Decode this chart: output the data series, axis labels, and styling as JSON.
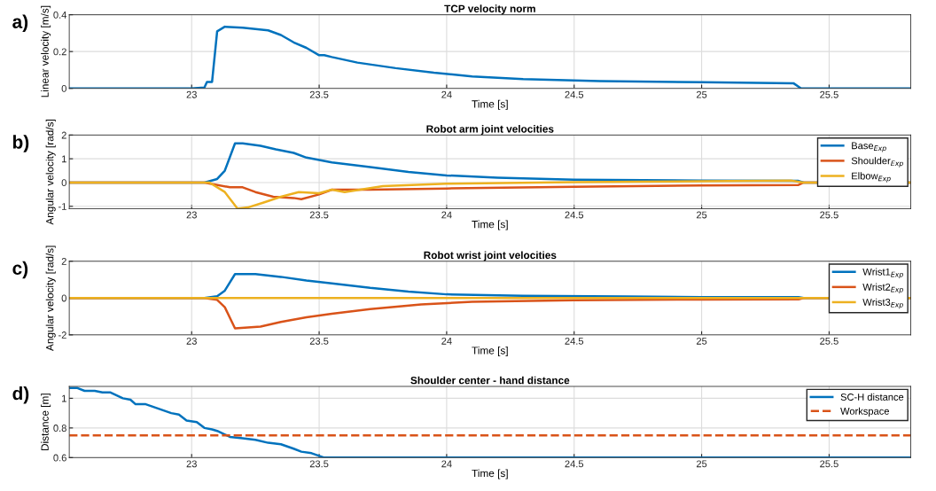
{
  "chart_data": [
    {
      "type": "line",
      "title": "TCP velocity norm",
      "xlabel": "Time [s]",
      "ylabel": "Linear velocity [m/s]",
      "annotations": [
        "a)"
      ],
      "xlim": [
        22.52,
        25.82
      ],
      "xticks": [
        23,
        23.5,
        24,
        24.5,
        25,
        25.5
      ],
      "ylim": [
        0,
        0.4
      ],
      "yticks": [
        0,
        0.2,
        0.4
      ],
      "grid": true,
      "legend": false,
      "line_style": "solid",
      "marker": "none",
      "series": [
        {
          "color": "#0072bd",
          "x": [
            22.52,
            23.0,
            23.05,
            23.06,
            23.08,
            23.1,
            23.13,
            23.2,
            23.3,
            23.35,
            23.4,
            23.45,
            23.5,
            23.52,
            23.55,
            23.65,
            23.8,
            23.95,
            24.1,
            24.3,
            24.6,
            25.0,
            25.36,
            25.39,
            25.82
          ],
          "values": [
            0,
            0,
            0.005,
            0.035,
            0.035,
            0.31,
            0.335,
            0.33,
            0.315,
            0.29,
            0.25,
            0.22,
            0.18,
            0.18,
            0.17,
            0.14,
            0.11,
            0.085,
            0.065,
            0.05,
            0.04,
            0.033,
            0.028,
            0,
            0
          ]
        }
      ]
    },
    {
      "type": "line",
      "title": "Robot arm joint velocities",
      "xlabel": "Time [s]",
      "ylabel": "Angular velocity [rad/s]",
      "annotations": [
        "b)"
      ],
      "xlim": [
        22.52,
        25.82
      ],
      "xticks": [
        23,
        23.5,
        24,
        24.5,
        25,
        25.5
      ],
      "ylim": [
        -1.1,
        2
      ],
      "yticks": [
        -1,
        0,
        1,
        2
      ],
      "grid": true,
      "legend": "top right",
      "line_style": "solid",
      "marker": "none",
      "series": [
        {
          "name": "Base$_{Exp}$",
          "color": "#0072bd",
          "x": [
            22.52,
            23.05,
            23.1,
            23.13,
            23.17,
            23.2,
            23.27,
            23.33,
            23.4,
            23.45,
            23.55,
            23.7,
            23.85,
            24.0,
            24.2,
            24.5,
            25.0,
            25.38,
            25.4,
            25.82
          ],
          "values": [
            0,
            0,
            0.15,
            0.5,
            1.65,
            1.65,
            1.55,
            1.4,
            1.25,
            1.05,
            0.85,
            0.65,
            0.45,
            0.3,
            0.2,
            0.12,
            0.08,
            0.07,
            0,
            0
          ]
        },
        {
          "name": "Shoulder$_{Exp}$",
          "color": "#d95319",
          "x": [
            22.52,
            23.05,
            23.15,
            23.2,
            23.25,
            23.32,
            23.4,
            23.43,
            23.5,
            23.55,
            23.7,
            24.0,
            24.5,
            25.0,
            25.38,
            25.4,
            25.82
          ],
          "values": [
            0,
            0,
            -0.2,
            -0.2,
            -0.4,
            -0.6,
            -0.65,
            -0.7,
            -0.5,
            -0.3,
            -0.3,
            -0.25,
            -0.18,
            -0.12,
            -0.1,
            0,
            0
          ]
        },
        {
          "name": "Elbow$_{Exp}$",
          "color": "#edb120",
          "x": [
            22.52,
            23.07,
            23.13,
            23.18,
            23.22,
            23.28,
            23.35,
            23.42,
            23.5,
            23.55,
            23.6,
            23.75,
            24.0,
            24.5,
            25.0,
            25.35,
            25.4,
            25.82
          ],
          "values": [
            0,
            0,
            -0.4,
            -1.1,
            -1.05,
            -0.85,
            -0.6,
            -0.4,
            -0.45,
            -0.3,
            -0.4,
            -0.15,
            -0.05,
            0.02,
            0.05,
            0.08,
            0,
            0
          ]
        }
      ]
    },
    {
      "type": "line",
      "title": "Robot wrist joint velocities",
      "xlabel": "Time [s]",
      "ylabel": "Angular velocity [rad/s]",
      "annotations": [
        "c)"
      ],
      "xlim": [
        22.52,
        25.82
      ],
      "xticks": [
        23,
        23.5,
        24,
        24.5,
        25,
        25.5
      ],
      "ylim": [
        -2,
        2
      ],
      "yticks": [
        -2,
        0,
        2
      ],
      "grid": true,
      "legend": "top right",
      "line_style": "solid",
      "marker": "none",
      "series": [
        {
          "name": "Wrist1$_{Exp}$",
          "color": "#0072bd",
          "x": [
            22.52,
            23.05,
            23.1,
            23.13,
            23.17,
            23.25,
            23.35,
            23.45,
            23.55,
            23.7,
            23.85,
            24.0,
            24.3,
            24.7,
            25.0,
            25.38,
            25.4,
            25.82
          ],
          "values": [
            0,
            0,
            0.1,
            0.4,
            1.3,
            1.3,
            1.15,
            0.95,
            0.8,
            0.55,
            0.35,
            0.2,
            0.12,
            0.08,
            0.05,
            0.05,
            0,
            0
          ]
        },
        {
          "name": "Wrist2$_{Exp}$",
          "color": "#d95319",
          "x": [
            22.52,
            23.05,
            23.1,
            23.13,
            23.17,
            23.27,
            23.35,
            23.45,
            23.55,
            23.7,
            23.9,
            24.1,
            24.5,
            25.0,
            25.38,
            25.4,
            25.82
          ],
          "values": [
            0,
            0,
            -0.1,
            -0.5,
            -1.65,
            -1.55,
            -1.3,
            -1.05,
            -0.85,
            -0.6,
            -0.35,
            -0.2,
            -0.12,
            -0.08,
            -0.07,
            0,
            0
          ]
        },
        {
          "name": "Wrist3$_{Exp}$",
          "color": "#edb120",
          "x": [
            22.52,
            25.82
          ],
          "values": [
            0,
            0
          ]
        }
      ]
    },
    {
      "type": "line",
      "title": "Shoulder center - hand distance",
      "xlabel": "Time [s]",
      "ylabel": "Distance [m]",
      "annotations": [
        "d)"
      ],
      "xlim": [
        22.52,
        25.82
      ],
      "xticks": [
        23,
        23.5,
        24,
        24.5,
        25,
        25.5
      ],
      "ylim": [
        0.6,
        1.08
      ],
      "yticks": [
        0.6,
        0.8,
        1
      ],
      "grid": true,
      "legend": "top right",
      "line_style": "solid",
      "marker": "none",
      "ref_lines": [
        {
          "axis": "y",
          "value": 0.75,
          "label": "Workspace",
          "color": "#d95319",
          "line_style": "dashed"
        }
      ],
      "series": [
        {
          "name": "SC-H distance",
          "color": "#0072bd",
          "x": [
            22.52,
            22.55,
            22.58,
            22.62,
            22.65,
            22.68,
            22.73,
            22.76,
            22.78,
            22.82,
            22.87,
            22.92,
            22.95,
            22.98,
            23.02,
            23.05,
            23.08,
            23.1,
            23.15,
            23.2,
            23.25,
            23.3,
            23.35,
            23.4,
            23.43,
            23.47,
            23.52,
            25.82
          ],
          "values": [
            1.07,
            1.07,
            1.05,
            1.05,
            1.04,
            1.04,
            1.0,
            0.99,
            0.96,
            0.96,
            0.93,
            0.9,
            0.89,
            0.85,
            0.84,
            0.8,
            0.79,
            0.78,
            0.74,
            0.73,
            0.72,
            0.7,
            0.69,
            0.66,
            0.64,
            0.63,
            0.6,
            0.6
          ]
        }
      ]
    }
  ]
}
